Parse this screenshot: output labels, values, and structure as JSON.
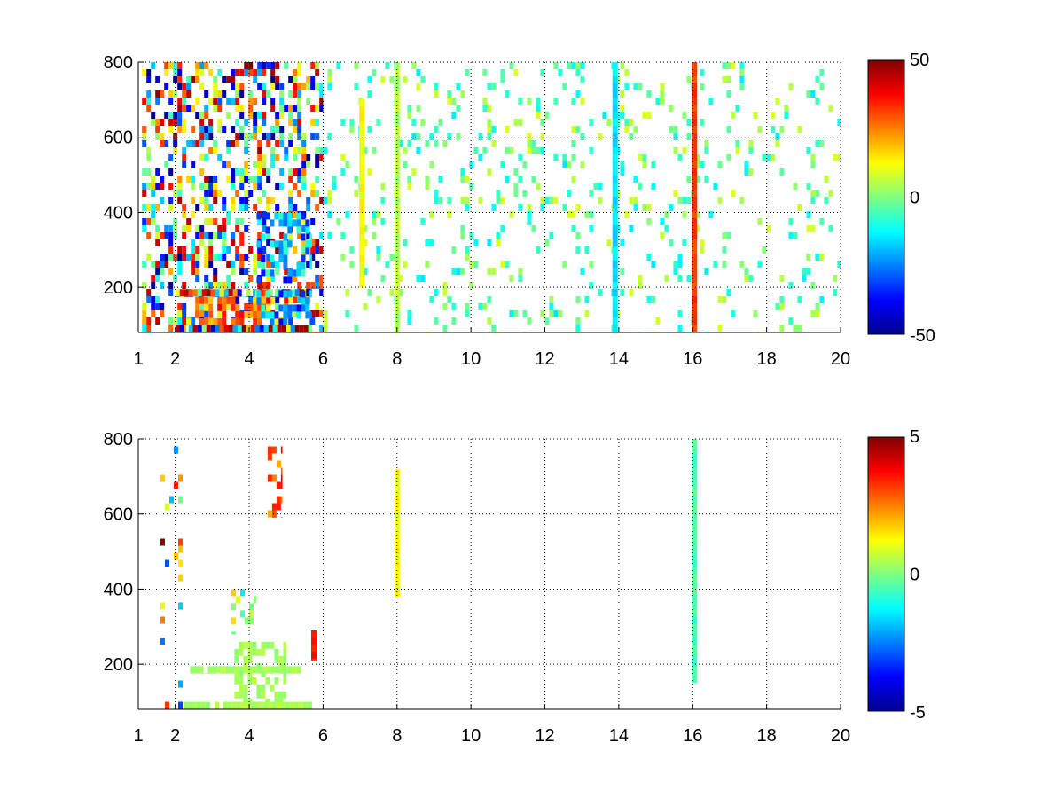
{
  "chart_data": [
    {
      "type": "heatmap",
      "title": "",
      "xlabel": "",
      "ylabel": "",
      "xlim": [
        1,
        20
      ],
      "ylim": [
        80,
        800
      ],
      "x_ticks": [
        "1",
        "2",
        "4",
        "6",
        "8",
        "10",
        "12",
        "14",
        "16",
        "18",
        "20"
      ],
      "y_ticks": [
        "200",
        "400",
        "600",
        "800"
      ],
      "grid": true,
      "colormap": "jet",
      "clim": [
        -50,
        50
      ],
      "colorbar_ticks": [
        "50",
        "0",
        "-50"
      ],
      "regions": [
        {
          "x": [
            1.1,
            6.0
          ],
          "y": [
            80,
            800
          ],
          "value_range": [
            -50,
            50
          ],
          "density": 0.45,
          "note_label": ""
        },
        {
          "x": [
            2.0,
            5.7
          ],
          "y": [
            80,
            100
          ],
          "value_range": [
            -50,
            50
          ],
          "density": 0.95
        },
        {
          "x": [
            2.0,
            5.7
          ],
          "y": [
            175,
            195
          ],
          "value_range": [
            -50,
            50
          ],
          "density": 0.9
        },
        {
          "x": [
            2.3,
            4.8
          ],
          "y": [
            100,
            175
          ],
          "value_range": [
            10,
            40
          ],
          "density": 0.6
        },
        {
          "x": [
            4.2,
            5.7
          ],
          "y": [
            100,
            400
          ],
          "value_range": [
            -40,
            -5
          ],
          "density": 0.45
        },
        {
          "x": [
            6.0,
            20.0
          ],
          "y": [
            80,
            800
          ],
          "value_range": [
            -15,
            10
          ],
          "density": 0.12
        }
      ],
      "columns": [
        {
          "x": 16.05,
          "y": [
            80,
            800
          ],
          "value": 32
        },
        {
          "x": 13.9,
          "y": [
            80,
            800
          ],
          "value": -15
        },
        {
          "x": 8.0,
          "y": [
            80,
            800
          ],
          "value": 5
        },
        {
          "x": 7.05,
          "y": [
            200,
            700
          ],
          "value": 12
        }
      ]
    },
    {
      "type": "heatmap",
      "title": "",
      "xlabel": "",
      "ylabel": "",
      "xlim": [
        1,
        20
      ],
      "ylim": [
        80,
        800
      ],
      "x_ticks": [
        "1",
        "2",
        "4",
        "6",
        "8",
        "10",
        "12",
        "14",
        "16",
        "18",
        "20"
      ],
      "y_ticks": [
        "200",
        "400",
        "600",
        "800"
      ],
      "grid": true,
      "colormap": "jet",
      "clim": [
        -5,
        5
      ],
      "colorbar_ticks": [
        "5",
        "0",
        "-5"
      ],
      "regions": [
        {
          "x": [
            2.1,
            5.7
          ],
          "y": [
            80,
            100
          ],
          "value_range": [
            0.2,
            0.6
          ],
          "density": 0.9
        },
        {
          "x": [
            2.4,
            5.4
          ],
          "y": [
            175,
            195
          ],
          "value_range": [
            0.2,
            0.6
          ],
          "density": 0.85
        },
        {
          "x": [
            3.6,
            5.0
          ],
          "y": [
            100,
            260
          ],
          "value_range": [
            0.1,
            0.6
          ],
          "density": 0.45
        },
        {
          "x": [
            3.4,
            4.2
          ],
          "y": [
            280,
            400
          ],
          "value_range": [
            -1.5,
            2
          ],
          "density": 0.25
        },
        {
          "x": [
            4.5,
            4.9
          ],
          "y": [
            590,
            780
          ],
          "value_range": [
            2,
            4
          ],
          "density": 0.45
        },
        {
          "x": [
            1.6,
            2.2
          ],
          "y": [
            80,
            780
          ],
          "value_range": [
            -5,
            5
          ],
          "density": 0.08
        }
      ],
      "columns": [
        {
          "x": 16.05,
          "y": [
            150,
            800
          ],
          "value": -0.5
        },
        {
          "x": 8.0,
          "y": [
            380,
            720
          ],
          "value": 1.2
        },
        {
          "x": 5.75,
          "y": [
            210,
            290
          ],
          "value": 3.5
        }
      ]
    }
  ]
}
